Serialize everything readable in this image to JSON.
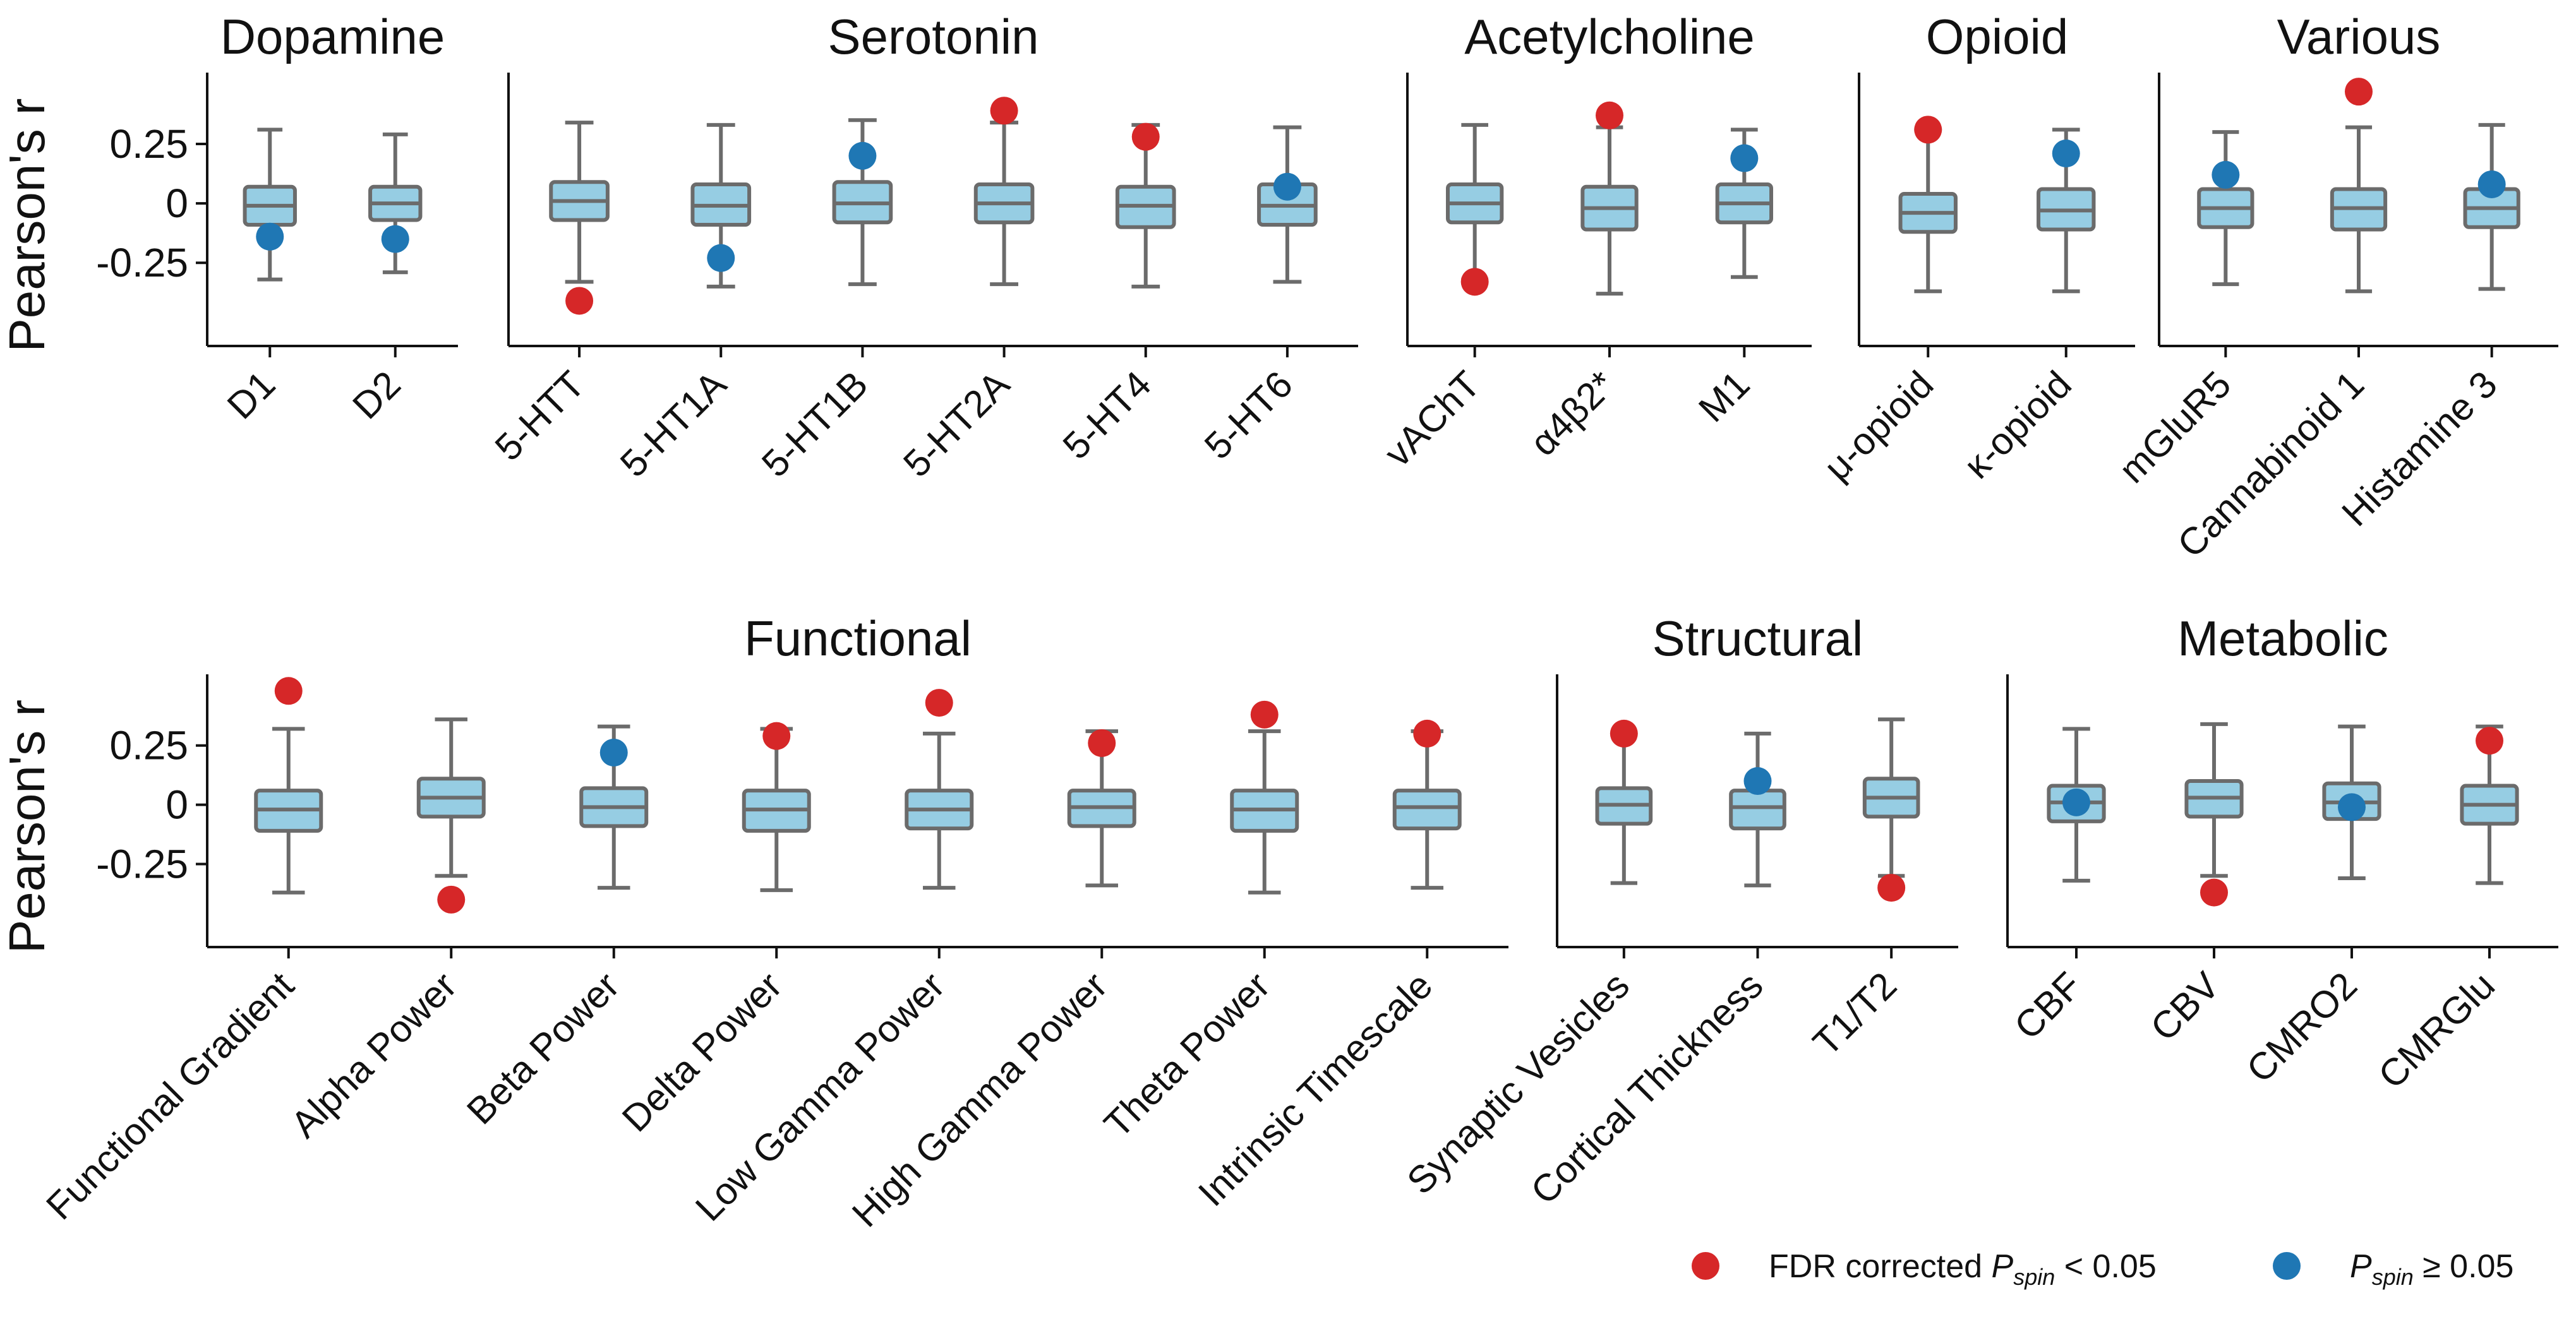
{
  "legend": [
    {
      "label_prefix": "FDR corrected ",
      "label_math": "P",
      "label_sub": "spin",
      "label_suffix": " < 0.05",
      "color": "#d62728"
    },
    {
      "label_prefix": "",
      "label_math": "P",
      "label_sub": "spin",
      "label_suffix": " ≥ 0.05",
      "color": "#1f77b4"
    }
  ],
  "colors": {
    "box_fill": "#96cde3",
    "box_edge": "#6b6b6b",
    "significant": "#d62728",
    "not_significant": "#1f77b4"
  },
  "chart_data": [
    {
      "type": "boxplot",
      "row": 1,
      "ylabel": "Pearson's r",
      "yticks": [
        0.25,
        0,
        -0.25
      ],
      "ytick_labels": [
        "0.25",
        "0",
        "-0.25"
      ],
      "ylim": [
        -0.6,
        0.55
      ],
      "panels": [
        {
          "title": "Dopamine",
          "categories": [
            {
              "label": "D1",
              "box": [
                -0.32,
                -0.09,
                -0.01,
                0.07,
                0.31
              ],
              "point": -0.14,
              "significant": false
            },
            {
              "label": "D2",
              "box": [
                -0.29,
                -0.07,
                0.0,
                0.07,
                0.29
              ],
              "point": -0.15,
              "significant": false
            }
          ]
        },
        {
          "title": "Serotonin",
          "categories": [
            {
              "label": "5-HTT",
              "box": [
                -0.33,
                -0.07,
                0.01,
                0.09,
                0.34
              ],
              "point": -0.41,
              "significant": true
            },
            {
              "label": "5-HT1A",
              "box": [
                -0.35,
                -0.09,
                -0.01,
                0.08,
                0.33
              ],
              "point": -0.23,
              "significant": false
            },
            {
              "label": "5-HT1B",
              "box": [
                -0.34,
                -0.08,
                0.0,
                0.09,
                0.35
              ],
              "point": 0.2,
              "significant": false
            },
            {
              "label": "5-HT2A",
              "box": [
                -0.34,
                -0.08,
                0.0,
                0.08,
                0.34
              ],
              "point": 0.39,
              "significant": true
            },
            {
              "label": "5-HT4",
              "box": [
                -0.35,
                -0.1,
                -0.01,
                0.07,
                0.33
              ],
              "point": 0.28,
              "significant": true
            },
            {
              "label": "5-HT6",
              "box": [
                -0.33,
                -0.09,
                -0.01,
                0.08,
                0.32
              ],
              "point": 0.07,
              "significant": false
            }
          ]
        },
        {
          "title": "Acetylcholine",
          "categories": [
            {
              "label": "vAChT",
              "box": [
                -0.32,
                -0.08,
                0.0,
                0.08,
                0.33
              ],
              "point": -0.33,
              "significant": true
            },
            {
              "label": "α4β2*",
              "box": [
                -0.38,
                -0.11,
                -0.02,
                0.07,
                0.32
              ],
              "point": 0.37,
              "significant": true
            },
            {
              "label": "M1",
              "box": [
                -0.31,
                -0.08,
                0.0,
                0.08,
                0.31
              ],
              "point": 0.19,
              "significant": false
            }
          ]
        },
        {
          "title": "Opioid",
          "categories": [
            {
              "label": "μ-opioid",
              "box": [
                -0.37,
                -0.12,
                -0.04,
                0.04,
                0.31
              ],
              "point": 0.31,
              "significant": true
            },
            {
              "label": "κ-opioid",
              "box": [
                -0.37,
                -0.11,
                -0.03,
                0.06,
                0.31
              ],
              "point": 0.21,
              "significant": false
            }
          ]
        },
        {
          "title": "Various",
          "categories": [
            {
              "label": "mGluR5",
              "box": [
                -0.34,
                -0.1,
                -0.02,
                0.06,
                0.3
              ],
              "point": 0.12,
              "significant": false
            },
            {
              "label": "Cannabinoid 1",
              "box": [
                -0.37,
                -0.11,
                -0.02,
                0.06,
                0.32
              ],
              "point": 0.47,
              "significant": true
            },
            {
              "label": "Histamine 3",
              "box": [
                -0.36,
                -0.1,
                -0.02,
                0.06,
                0.33
              ],
              "point": 0.08,
              "significant": false
            }
          ]
        }
      ]
    },
    {
      "type": "boxplot",
      "row": 2,
      "ylabel": "Pearson's r",
      "yticks": [
        0.25,
        0,
        -0.25
      ],
      "ytick_labels": [
        "0.25",
        "0",
        "-0.25"
      ],
      "ylim": [
        -0.6,
        0.55
      ],
      "panels": [
        {
          "title": "Functional",
          "categories": [
            {
              "label": "Functional Gradient",
              "box": [
                -0.37,
                -0.11,
                -0.02,
                0.06,
                0.32
              ],
              "point": 0.48,
              "significant": true
            },
            {
              "label": "Alpha Power",
              "box": [
                -0.3,
                -0.05,
                0.03,
                0.11,
                0.36
              ],
              "point": -0.4,
              "significant": true
            },
            {
              "label": "Beta Power",
              "box": [
                -0.35,
                -0.09,
                -0.01,
                0.07,
                0.33
              ],
              "point": 0.22,
              "significant": false
            },
            {
              "label": "Delta Power",
              "box": [
                -0.36,
                -0.11,
                -0.02,
                0.06,
                0.32
              ],
              "point": 0.29,
              "significant": true
            },
            {
              "label": "Low Gamma Power",
              "box": [
                -0.35,
                -0.1,
                -0.02,
                0.06,
                0.3
              ],
              "point": 0.43,
              "significant": true
            },
            {
              "label": "High Gamma Power",
              "box": [
                -0.34,
                -0.09,
                -0.01,
                0.06,
                0.31
              ],
              "point": 0.26,
              "significant": true
            },
            {
              "label": "Theta Power",
              "box": [
                -0.37,
                -0.11,
                -0.02,
                0.06,
                0.31
              ],
              "point": 0.38,
              "significant": true
            },
            {
              "label": "Intrinsic Timescale",
              "box": [
                -0.35,
                -0.1,
                -0.01,
                0.06,
                0.31
              ],
              "point": 0.3,
              "significant": true
            }
          ]
        },
        {
          "title": "Structural",
          "categories": [
            {
              "label": "Synaptic Vesicles",
              "box": [
                -0.33,
                -0.08,
                0.0,
                0.07,
                0.3
              ],
              "point": 0.3,
              "significant": true
            },
            {
              "label": "Cortical Thickness",
              "box": [
                -0.34,
                -0.1,
                -0.01,
                0.06,
                0.3
              ],
              "point": 0.1,
              "significant": false
            },
            {
              "label": "T1/T2",
              "box": [
                -0.3,
                -0.05,
                0.03,
                0.11,
                0.36
              ],
              "point": -0.35,
              "significant": true
            }
          ]
        },
        {
          "title": "Metabolic",
          "categories": [
            {
              "label": "CBF",
              "box": [
                -0.32,
                -0.07,
                0.01,
                0.08,
                0.32
              ],
              "point": 0.01,
              "significant": false
            },
            {
              "label": "CBV",
              "box": [
                -0.3,
                -0.05,
                0.03,
                0.1,
                0.34
              ],
              "point": -0.37,
              "significant": true
            },
            {
              "label": "CMRO2",
              "box": [
                -0.31,
                -0.06,
                0.01,
                0.09,
                0.33
              ],
              "point": -0.01,
              "significant": false
            },
            {
              "label": "CMRGlu",
              "box": [
                -0.33,
                -0.08,
                0.0,
                0.08,
                0.33
              ],
              "point": 0.27,
              "significant": true
            }
          ]
        }
      ]
    }
  ]
}
